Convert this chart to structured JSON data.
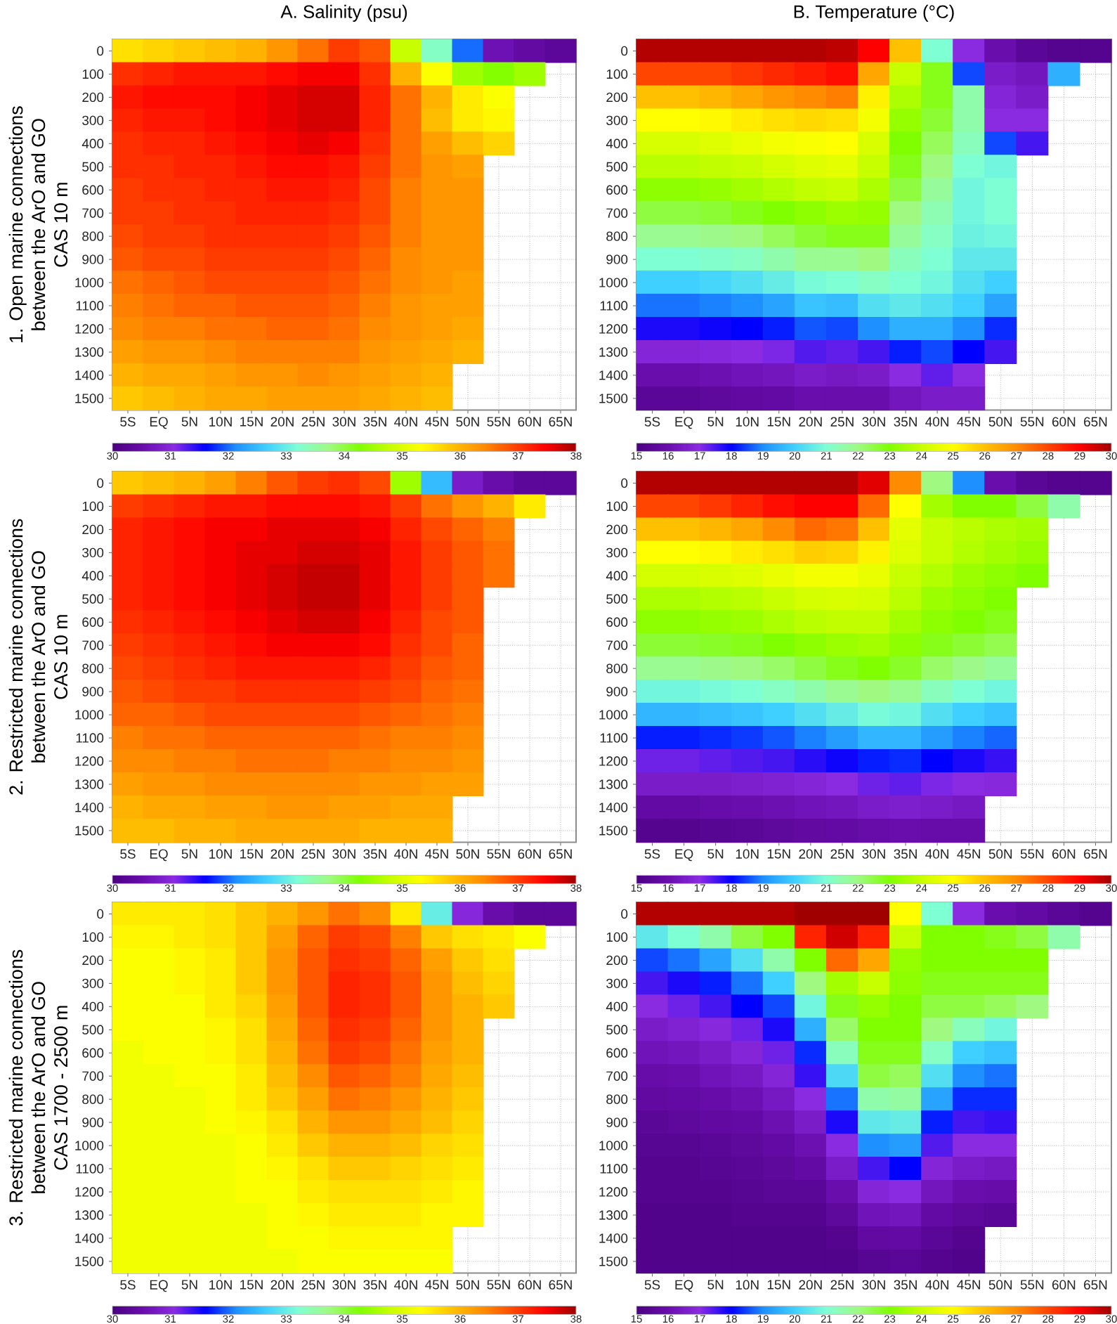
{
  "chart_data": [
    {
      "type": "heatmap",
      "title": "A. Salinity (psu)",
      "ylabel": "1. Open marine connections\nbetween the ArO and GO\nCAS 10 m",
      "categories": [
        "5S",
        "EQ",
        "5N",
        "10N",
        "15N",
        "20N",
        "25N",
        "30N",
        "35N",
        "40N",
        "45N",
        "50N",
        "55N",
        "60N",
        "65N"
      ],
      "y_categories": [
        "0",
        "100",
        "200",
        "300",
        "400",
        "500",
        "600",
        "700",
        "800",
        "900",
        "1000",
        "1100",
        "1200",
        "1300",
        "1400",
        "1500"
      ],
      "cells": [
        [
          35.6,
          35.7,
          35.8,
          35.9,
          36.0,
          36.3,
          36.6,
          37.0,
          36.8,
          34.8,
          33.3,
          32.0,
          30.6,
          30.4,
          30.3
        ],
        [
          37.1,
          37.2,
          37.3,
          37.3,
          37.3,
          37.4,
          37.5,
          37.5,
          37.1,
          36.0,
          35.3,
          34.5,
          34.3,
          34.5,
          null
        ],
        [
          37.3,
          37.4,
          37.4,
          37.4,
          37.5,
          37.6,
          37.7,
          37.7,
          37.2,
          36.6,
          36.0,
          35.5,
          35.3,
          null,
          null
        ],
        [
          37.2,
          37.3,
          37.3,
          37.4,
          37.5,
          37.6,
          37.7,
          37.7,
          37.2,
          36.6,
          35.9,
          35.5,
          35.4,
          null,
          null
        ],
        [
          37.1,
          37.2,
          37.2,
          37.3,
          37.4,
          37.5,
          37.6,
          37.5,
          37.1,
          36.6,
          36.2,
          35.9,
          35.7,
          null,
          null
        ],
        [
          37.1,
          37.1,
          37.2,
          37.2,
          37.3,
          37.4,
          37.4,
          37.3,
          37.0,
          36.6,
          36.3,
          36.2,
          null,
          null,
          null
        ],
        [
          37.0,
          37.1,
          37.1,
          37.2,
          37.2,
          37.3,
          37.3,
          37.2,
          36.9,
          36.5,
          36.3,
          36.3,
          null,
          null,
          null
        ],
        [
          37.0,
          37.0,
          37.1,
          37.1,
          37.2,
          37.2,
          37.2,
          37.1,
          36.9,
          36.5,
          36.3,
          36.3,
          null,
          null,
          null
        ],
        [
          36.9,
          37.0,
          37.0,
          37.1,
          37.1,
          37.1,
          37.1,
          37.0,
          36.8,
          36.5,
          36.3,
          36.3,
          null,
          null,
          null
        ],
        [
          36.8,
          36.9,
          36.9,
          37.0,
          37.0,
          37.0,
          37.0,
          36.9,
          36.7,
          36.4,
          36.3,
          36.3,
          null,
          null,
          null
        ],
        [
          36.6,
          36.7,
          36.8,
          36.9,
          36.9,
          36.9,
          36.9,
          36.8,
          36.6,
          36.4,
          36.3,
          36.2,
          null,
          null,
          null
        ],
        [
          36.5,
          36.6,
          36.7,
          36.7,
          36.8,
          36.8,
          36.8,
          36.7,
          36.5,
          36.3,
          36.2,
          36.2,
          null,
          null,
          null
        ],
        [
          36.4,
          36.5,
          36.5,
          36.6,
          36.6,
          36.7,
          36.7,
          36.6,
          36.4,
          36.3,
          36.2,
          36.1,
          null,
          null,
          null
        ],
        [
          36.2,
          36.3,
          36.3,
          36.4,
          36.5,
          36.5,
          36.5,
          36.5,
          36.3,
          36.2,
          36.1,
          36.0,
          null,
          null,
          null
        ],
        [
          36.0,
          36.1,
          36.1,
          36.2,
          36.3,
          36.3,
          36.4,
          36.3,
          36.2,
          36.1,
          36.0,
          null,
          null,
          null,
          null
        ],
        [
          35.8,
          35.9,
          36.0,
          36.1,
          36.1,
          36.2,
          36.2,
          36.2,
          36.1,
          36.0,
          35.9,
          null,
          null,
          null,
          null
        ]
      ],
      "clim": [
        30,
        38
      ],
      "cticks": [
        30,
        31,
        32,
        33,
        34,
        35,
        36,
        37,
        38
      ],
      "grid": true
    },
    {
      "type": "heatmap",
      "title": "B. Temperature (°C)",
      "categories": [
        "5S",
        "EQ",
        "5N",
        "10N",
        "15N",
        "20N",
        "25N",
        "30N",
        "35N",
        "40N",
        "45N",
        "50N",
        "55N",
        "60N",
        "65N"
      ],
      "y_categories": [
        "0",
        "100",
        "200",
        "300",
        "400",
        "500",
        "600",
        "700",
        "800",
        "900",
        "1000",
        "1100",
        "1200",
        "1300",
        "1400",
        "1500"
      ],
      "cells": [
        [
          29.8,
          29.8,
          29.8,
          29.8,
          29.8,
          29.8,
          29.7,
          29.0,
          26.0,
          21.0,
          17.0,
          16.0,
          15.5,
          15.3,
          15.3
        ],
        [
          28.0,
          28.0,
          28.0,
          28.2,
          28.4,
          28.6,
          28.8,
          26.5,
          24.0,
          22.8,
          18.5,
          16.5,
          16.3,
          19.5,
          null
        ],
        [
          26.0,
          26.0,
          26.2,
          26.5,
          26.8,
          27.0,
          27.2,
          25.2,
          23.6,
          22.8,
          21.5,
          16.8,
          16.5,
          null,
          null
        ],
        [
          25.0,
          25.0,
          25.1,
          25.3,
          25.5,
          25.6,
          25.5,
          24.8,
          23.3,
          22.6,
          21.5,
          17.0,
          17.0,
          null,
          null
        ],
        [
          24.3,
          24.3,
          24.4,
          24.6,
          24.8,
          24.9,
          25.0,
          24.3,
          23.0,
          22.3,
          21.3,
          18.5,
          17.5,
          null,
          null
        ],
        [
          23.8,
          23.8,
          23.9,
          24.0,
          24.2,
          24.4,
          24.5,
          24.0,
          22.8,
          22.0,
          21.0,
          20.8,
          null,
          null,
          null
        ],
        [
          23.2,
          23.2,
          23.3,
          23.5,
          23.7,
          23.9,
          24.0,
          23.6,
          22.5,
          21.7,
          20.8,
          21.0,
          null,
          null,
          null
        ],
        [
          22.5,
          22.5,
          22.6,
          22.8,
          23.0,
          23.2,
          23.4,
          23.3,
          22.0,
          21.4,
          20.8,
          21.0,
          null,
          null,
          null
        ],
        [
          21.8,
          21.8,
          21.9,
          22.0,
          22.3,
          22.6,
          22.8,
          22.8,
          21.7,
          21.2,
          20.7,
          20.8,
          null,
          null,
          null
        ],
        [
          21.0,
          21.0,
          21.1,
          21.2,
          21.5,
          21.8,
          21.8,
          22.0,
          21.3,
          21.0,
          20.5,
          20.5,
          null,
          null,
          null
        ],
        [
          20.0,
          20.0,
          20.1,
          20.3,
          20.6,
          20.9,
          21.0,
          21.2,
          21.0,
          20.8,
          20.3,
          20.0,
          null,
          null,
          null
        ],
        [
          18.8,
          18.8,
          18.9,
          19.0,
          19.3,
          19.8,
          19.7,
          20.3,
          20.5,
          20.3,
          20.0,
          19.3,
          null,
          null,
          null
        ],
        [
          17.8,
          17.8,
          17.9,
          18.0,
          18.2,
          18.6,
          18.5,
          19.0,
          19.5,
          19.5,
          19.0,
          18.3,
          null,
          null,
          null
        ],
        [
          16.8,
          16.8,
          16.9,
          17.0,
          17.1,
          17.4,
          17.3,
          17.5,
          18.2,
          18.5,
          18.0,
          17.5,
          null,
          null,
          null
        ],
        [
          16.0,
          16.0,
          16.1,
          16.2,
          16.3,
          16.5,
          16.4,
          16.5,
          17.0,
          17.3,
          17.0,
          null,
          null,
          null,
          null
        ],
        [
          15.5,
          15.5,
          15.6,
          15.7,
          15.8,
          16.0,
          16.0,
          16.0,
          16.3,
          16.5,
          16.5,
          null,
          null,
          null,
          null
        ]
      ],
      "clim": [
        15,
        30
      ],
      "cticks": [
        15,
        16,
        17,
        18,
        19,
        20,
        21,
        22,
        23,
        24,
        25,
        26,
        27,
        28,
        29,
        30
      ],
      "grid": true
    },
    {
      "type": "heatmap",
      "ylabel": "2. Restricted marine connections\nbetween the ArO and GO\nCAS 10 m",
      "categories": [
        "5S",
        "EQ",
        "5N",
        "10N",
        "15N",
        "20N",
        "25N",
        "30N",
        "35N",
        "40N",
        "45N",
        "50N",
        "55N",
        "60N",
        "65N"
      ],
      "y_categories": [
        "0",
        "100",
        "200",
        "300",
        "400",
        "500",
        "600",
        "700",
        "800",
        "900",
        "1000",
        "1100",
        "1200",
        "1300",
        "1400",
        "1500"
      ],
      "cells": [
        [
          35.8,
          35.9,
          36.0,
          36.2,
          36.5,
          36.8,
          37.0,
          37.1,
          36.9,
          34.5,
          32.5,
          30.8,
          30.5,
          30.3,
          30.3
        ],
        [
          37.0,
          37.1,
          37.2,
          37.3,
          37.3,
          37.4,
          37.4,
          37.4,
          37.3,
          37.0,
          36.6,
          36.3,
          36.0,
          35.5,
          null
        ],
        [
          37.2,
          37.3,
          37.4,
          37.5,
          37.5,
          37.6,
          37.6,
          37.6,
          37.5,
          37.2,
          36.9,
          36.7,
          36.5,
          null,
          null
        ],
        [
          37.2,
          37.3,
          37.4,
          37.5,
          37.6,
          37.6,
          37.7,
          37.7,
          37.6,
          37.3,
          37.0,
          36.8,
          36.6,
          null,
          null
        ],
        [
          37.2,
          37.3,
          37.4,
          37.5,
          37.6,
          37.7,
          37.8,
          37.8,
          37.6,
          37.3,
          37.0,
          36.8,
          36.6,
          null,
          null
        ],
        [
          37.2,
          37.3,
          37.4,
          37.5,
          37.6,
          37.7,
          37.8,
          37.8,
          37.6,
          37.3,
          37.0,
          36.8,
          null,
          null,
          null
        ],
        [
          37.1,
          37.2,
          37.3,
          37.4,
          37.5,
          37.6,
          37.7,
          37.7,
          37.5,
          37.2,
          36.9,
          36.8,
          null,
          null,
          null
        ],
        [
          37.0,
          37.1,
          37.2,
          37.3,
          37.4,
          37.5,
          37.5,
          37.5,
          37.4,
          37.1,
          36.9,
          36.7,
          null,
          null,
          null
        ],
        [
          36.9,
          37.0,
          37.1,
          37.2,
          37.3,
          37.3,
          37.3,
          37.3,
          37.2,
          37.0,
          36.8,
          36.7,
          null,
          null,
          null
        ],
        [
          36.8,
          36.9,
          37.0,
          37.0,
          37.1,
          37.1,
          37.1,
          37.1,
          37.0,
          36.9,
          36.7,
          36.6,
          null,
          null,
          null
        ],
        [
          36.7,
          36.7,
          36.8,
          36.9,
          36.9,
          36.9,
          36.9,
          36.9,
          36.8,
          36.7,
          36.6,
          36.5,
          null,
          null,
          null
        ],
        [
          36.5,
          36.6,
          36.6,
          36.7,
          36.7,
          36.7,
          36.7,
          36.7,
          36.6,
          36.5,
          36.5,
          36.4,
          null,
          null,
          null
        ],
        [
          36.4,
          36.4,
          36.5,
          36.5,
          36.6,
          36.6,
          36.6,
          36.5,
          36.5,
          36.4,
          36.4,
          36.3,
          null,
          null,
          null
        ],
        [
          36.2,
          36.3,
          36.3,
          36.4,
          36.4,
          36.4,
          36.4,
          36.4,
          36.3,
          36.3,
          36.2,
          36.2,
          null,
          null,
          null
        ],
        [
          36.0,
          36.1,
          36.1,
          36.2,
          36.2,
          36.3,
          36.3,
          36.2,
          36.2,
          36.1,
          36.1,
          null,
          null,
          null,
          null
        ],
        [
          35.9,
          35.9,
          36.0,
          36.0,
          36.1,
          36.1,
          36.1,
          36.1,
          36.0,
          36.0,
          36.0,
          null,
          null,
          null,
          null
        ]
      ],
      "clim": [
        30,
        38
      ],
      "cticks": [
        30,
        31,
        32,
        33,
        34,
        35,
        36,
        37,
        38
      ],
      "grid": true
    },
    {
      "type": "heatmap",
      "categories": [
        "5S",
        "EQ",
        "5N",
        "10N",
        "15N",
        "20N",
        "25N",
        "30N",
        "35N",
        "40N",
        "45N",
        "50N",
        "55N",
        "60N",
        "65N"
      ],
      "y_categories": [
        "0",
        "100",
        "200",
        "300",
        "400",
        "500",
        "600",
        "700",
        "800",
        "900",
        "1000",
        "1100",
        "1200",
        "1300",
        "1400",
        "1500"
      ],
      "cells": [
        [
          29.8,
          29.8,
          29.8,
          29.8,
          29.8,
          29.8,
          29.8,
          29.3,
          27.0,
          22.0,
          19.0,
          16.0,
          15.5,
          15.3,
          15.3
        ],
        [
          28.0,
          28.0,
          28.2,
          28.5,
          28.8,
          29.0,
          29.0,
          27.5,
          25.0,
          23.5,
          23.0,
          23.0,
          22.5,
          21.5,
          null
        ],
        [
          26.0,
          26.0,
          26.2,
          26.5,
          27.0,
          27.5,
          27.3,
          26.0,
          24.5,
          24.0,
          23.8,
          23.6,
          23.5,
          null,
          null
        ],
        [
          25.0,
          25.0,
          25.1,
          25.3,
          25.5,
          25.8,
          25.7,
          25.2,
          24.4,
          24.0,
          23.7,
          23.5,
          23.3,
          null,
          null
        ],
        [
          24.2,
          24.2,
          24.3,
          24.4,
          24.6,
          24.8,
          24.8,
          24.6,
          24.0,
          23.7,
          23.4,
          23.2,
          23.0,
          null,
          null
        ],
        [
          23.6,
          23.6,
          23.7,
          23.8,
          24.0,
          24.2,
          24.3,
          24.2,
          23.8,
          23.4,
          23.2,
          23.0,
          null,
          null,
          null
        ],
        [
          23.2,
          23.2,
          23.3,
          23.4,
          23.6,
          23.8,
          23.9,
          23.9,
          23.5,
          23.2,
          23.0,
          22.8,
          null,
          null,
          null
        ],
        [
          22.6,
          22.6,
          22.7,
          22.8,
          23.0,
          23.2,
          23.4,
          23.5,
          23.2,
          22.8,
          22.6,
          22.4,
          null,
          null,
          null
        ],
        [
          21.8,
          21.8,
          21.9,
          22.0,
          22.2,
          22.5,
          22.8,
          23.0,
          22.7,
          22.2,
          21.9,
          21.7,
          null,
          null,
          null
        ],
        [
          20.8,
          20.8,
          20.9,
          21.0,
          21.2,
          21.5,
          21.8,
          22.0,
          21.8,
          21.3,
          21.0,
          20.8,
          null,
          null,
          null
        ],
        [
          19.6,
          19.6,
          19.7,
          19.8,
          20.0,
          20.3,
          20.6,
          20.9,
          20.8,
          20.3,
          20.0,
          19.8,
          null,
          null,
          null
        ],
        [
          18.2,
          18.2,
          18.3,
          18.4,
          18.6,
          18.9,
          19.2,
          19.6,
          19.6,
          19.2,
          18.9,
          18.7,
          null,
          null,
          null
        ],
        [
          17.2,
          17.2,
          17.3,
          17.4,
          17.5,
          17.7,
          17.9,
          18.2,
          18.3,
          18.0,
          17.8,
          17.6,
          null,
          null,
          null
        ],
        [
          16.5,
          16.5,
          16.5,
          16.6,
          16.7,
          16.8,
          17.0,
          17.2,
          17.3,
          17.1,
          17.0,
          16.9,
          null,
          null,
          null
        ],
        [
          15.8,
          15.8,
          15.9,
          16.0,
          16.1,
          16.2,
          16.3,
          16.5,
          16.6,
          16.5,
          16.4,
          null,
          null,
          null,
          null
        ],
        [
          15.3,
          15.3,
          15.4,
          15.5,
          15.6,
          15.7,
          15.8,
          15.9,
          16.0,
          15.9,
          15.9,
          null,
          null,
          null,
          null
        ]
      ],
      "clim": [
        15,
        30
      ],
      "cticks": [
        15,
        16,
        17,
        18,
        19,
        20,
        21,
        22,
        23,
        24,
        25,
        26,
        27,
        28,
        29,
        30
      ],
      "grid": true
    },
    {
      "type": "heatmap",
      "ylabel": "3. Restricted marine connections\nbetween the ArO and GO\nCAS 1700 - 2500 m",
      "categories": [
        "5S",
        "EQ",
        "5N",
        "10N",
        "15N",
        "20N",
        "25N",
        "30N",
        "35N",
        "40N",
        "45N",
        "50N",
        "55N",
        "60N",
        "65N"
      ],
      "y_categories": [
        "0",
        "100",
        "200",
        "300",
        "400",
        "500",
        "600",
        "700",
        "800",
        "900",
        "1000",
        "1100",
        "1200",
        "1300",
        "1400",
        "1500"
      ],
      "cells": [
        [
          35.5,
          35.5,
          35.5,
          35.6,
          35.8,
          36.0,
          36.3,
          36.6,
          36.4,
          35.5,
          33.0,
          31.0,
          30.5,
          30.3,
          30.3
        ],
        [
          35.4,
          35.4,
          35.5,
          35.6,
          35.8,
          36.2,
          36.7,
          37.0,
          36.9,
          36.5,
          35.8,
          35.6,
          35.5,
          35.3,
          null
        ],
        [
          35.3,
          35.3,
          35.4,
          35.5,
          35.8,
          36.3,
          36.8,
          37.1,
          37.0,
          36.7,
          36.2,
          35.8,
          35.6,
          null,
          null
        ],
        [
          35.3,
          35.3,
          35.4,
          35.5,
          35.8,
          36.3,
          36.8,
          37.2,
          37.1,
          36.8,
          36.3,
          35.9,
          35.7,
          null,
          null
        ],
        [
          35.3,
          35.3,
          35.3,
          35.5,
          35.7,
          36.2,
          36.8,
          37.2,
          37.1,
          36.8,
          36.3,
          36.0,
          35.8,
          null,
          null
        ],
        [
          35.3,
          35.3,
          35.3,
          35.4,
          35.6,
          36.1,
          36.7,
          37.1,
          37.0,
          36.7,
          36.3,
          36.0,
          null,
          null,
          null
        ],
        [
          35.2,
          35.3,
          35.3,
          35.4,
          35.6,
          36.0,
          36.6,
          37.0,
          36.9,
          36.6,
          36.2,
          36.0,
          null,
          null,
          null
        ],
        [
          35.2,
          35.2,
          35.3,
          35.3,
          35.5,
          35.9,
          36.4,
          36.8,
          36.7,
          36.5,
          36.1,
          35.9,
          null,
          null,
          null
        ],
        [
          35.2,
          35.2,
          35.2,
          35.3,
          35.5,
          35.8,
          36.2,
          36.6,
          36.5,
          36.3,
          36.0,
          35.8,
          null,
          null,
          null
        ],
        [
          35.2,
          35.2,
          35.2,
          35.3,
          35.4,
          35.6,
          36.0,
          36.3,
          36.3,
          36.1,
          35.9,
          35.7,
          null,
          null,
          null
        ],
        [
          35.2,
          35.2,
          35.2,
          35.2,
          35.3,
          35.5,
          35.8,
          36.0,
          36.0,
          35.9,
          35.7,
          35.6,
          null,
          null,
          null
        ],
        [
          35.2,
          35.2,
          35.2,
          35.2,
          35.3,
          35.4,
          35.6,
          35.8,
          35.8,
          35.7,
          35.6,
          35.5,
          null,
          null,
          null
        ],
        [
          35.2,
          35.2,
          35.2,
          35.2,
          35.3,
          35.3,
          35.5,
          35.6,
          35.6,
          35.6,
          35.5,
          35.4,
          null,
          null,
          null
        ],
        [
          35.2,
          35.2,
          35.2,
          35.2,
          35.2,
          35.3,
          35.4,
          35.5,
          35.5,
          35.5,
          35.4,
          35.4,
          null,
          null,
          null
        ],
        [
          35.2,
          35.2,
          35.2,
          35.2,
          35.2,
          35.3,
          35.3,
          35.4,
          35.4,
          35.4,
          35.4,
          null,
          null,
          null,
          null
        ],
        [
          35.2,
          35.2,
          35.2,
          35.2,
          35.2,
          35.2,
          35.3,
          35.3,
          35.3,
          35.3,
          35.3,
          null,
          null,
          null,
          null
        ]
      ],
      "clim": [
        30,
        38
      ],
      "cticks": [
        30,
        31,
        32,
        33,
        34,
        35,
        36,
        37,
        38
      ],
      "grid": true
    },
    {
      "type": "heatmap",
      "categories": [
        "5S",
        "EQ",
        "5N",
        "10N",
        "15N",
        "20N",
        "25N",
        "30N",
        "35N",
        "40N",
        "45N",
        "50N",
        "55N",
        "60N",
        "65N"
      ],
      "y_categories": [
        "0",
        "100",
        "200",
        "300",
        "400",
        "500",
        "600",
        "700",
        "800",
        "900",
        "1000",
        "1100",
        "1200",
        "1300",
        "1400",
        "1500"
      ],
      "cells": [
        [
          29.8,
          29.8,
          29.8,
          29.8,
          29.8,
          30.0,
          30.0,
          30.0,
          25.0,
          21.0,
          17.0,
          16.0,
          15.8,
          15.5,
          15.3
        ],
        [
          20.5,
          21.0,
          21.5,
          22.5,
          23.0,
          28.5,
          29.5,
          28.5,
          24.0,
          23.0,
          23.0,
          22.8,
          22.5,
          21.5,
          null
        ],
        [
          18.5,
          18.8,
          19.3,
          20.3,
          21.5,
          23.0,
          27.5,
          26.5,
          23.3,
          23.0,
          23.0,
          23.0,
          23.0,
          null,
          null
        ],
        [
          17.5,
          17.8,
          18.2,
          18.8,
          20.0,
          22.0,
          23.5,
          24.0,
          23.2,
          22.8,
          22.8,
          22.8,
          22.8,
          null,
          null
        ],
        [
          17.0,
          17.2,
          17.5,
          18.0,
          18.5,
          20.8,
          22.8,
          23.3,
          23.0,
          22.5,
          22.5,
          22.3,
          22.0,
          null,
          null
        ],
        [
          16.5,
          16.7,
          16.9,
          17.2,
          17.8,
          19.5,
          22.2,
          23.0,
          23.0,
          22.0,
          21.3,
          20.8,
          null,
          null,
          null
        ],
        [
          16.2,
          16.3,
          16.5,
          16.8,
          17.2,
          18.3,
          21.3,
          22.8,
          22.8,
          21.2,
          20.0,
          19.8,
          null,
          null,
          null
        ],
        [
          15.9,
          16.0,
          16.2,
          16.4,
          16.8,
          17.6,
          20.2,
          22.5,
          22.3,
          20.3,
          19.0,
          18.8,
          null,
          null,
          null
        ],
        [
          15.7,
          15.8,
          15.9,
          16.1,
          16.4,
          17.0,
          18.8,
          21.5,
          21.6,
          19.3,
          18.3,
          18.3,
          null,
          null,
          null
        ],
        [
          15.5,
          15.6,
          15.7,
          15.8,
          16.1,
          16.5,
          17.8,
          20.5,
          20.6,
          18.2,
          17.5,
          17.6,
          null,
          null,
          null
        ],
        [
          15.4,
          15.4,
          15.5,
          15.6,
          15.8,
          16.1,
          17.0,
          19.0,
          19.2,
          17.4,
          17.0,
          17.0,
          null,
          null,
          null
        ],
        [
          15.3,
          15.3,
          15.4,
          15.5,
          15.6,
          15.8,
          16.5,
          17.5,
          18.0,
          16.8,
          16.5,
          16.4,
          null,
          null,
          null
        ],
        [
          15.3,
          15.3,
          15.3,
          15.4,
          15.5,
          15.5,
          16.0,
          16.8,
          17.0,
          16.3,
          16.0,
          15.9,
          null,
          null,
          null
        ],
        [
          15.2,
          15.2,
          15.2,
          15.3,
          15.3,
          15.3,
          15.6,
          16.2,
          16.3,
          15.8,
          15.6,
          15.5,
          null,
          null,
          null
        ],
        [
          15.2,
          15.2,
          15.2,
          15.2,
          15.2,
          15.2,
          15.3,
          15.7,
          15.8,
          15.5,
          15.3,
          null,
          null,
          null,
          null
        ],
        [
          15.2,
          15.2,
          15.2,
          15.2,
          15.2,
          15.2,
          15.2,
          15.4,
          15.5,
          15.3,
          15.2,
          null,
          null,
          null,
          null
        ]
      ],
      "clim": [
        15,
        30
      ],
      "cticks": [
        15,
        16,
        17,
        18,
        19,
        20,
        21,
        22,
        23,
        24,
        25,
        26,
        27,
        28,
        29,
        30
      ],
      "grid": true
    }
  ]
}
